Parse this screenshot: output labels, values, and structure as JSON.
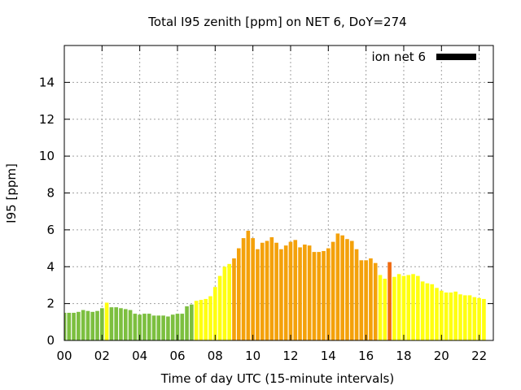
{
  "chart_data": {
    "type": "bar",
    "title": "Total I95 zenith [ppm] on NET 6, DoY=274",
    "xlabel": "Time of day UTC (15-minute intervals)",
    "ylabel": "I95 [ppm]",
    "xlim": [
      0,
      22.75
    ],
    "ylim": [
      0,
      16
    ],
    "grid": true,
    "legend": {
      "label": "ion net 6",
      "position": "top-right",
      "color": "#000000"
    },
    "xticks": [
      "00",
      "02",
      "04",
      "06",
      "08",
      "10",
      "12",
      "14",
      "16",
      "18",
      "20",
      "22"
    ],
    "yticks": [
      "0",
      "2",
      "4",
      "6",
      "8",
      "10",
      "12",
      "14"
    ],
    "colors": {
      "green": "#7cbf3f",
      "yellow": "#ffff10",
      "orange": "#f4a10a",
      "red": "#f06a10"
    },
    "interval_hours": 0.25,
    "values": [
      1.5,
      1.5,
      1.5,
      1.55,
      1.65,
      1.6,
      1.55,
      1.6,
      1.75,
      2.05,
      1.8,
      1.8,
      1.75,
      1.7,
      1.65,
      1.45,
      1.4,
      1.45,
      1.45,
      1.35,
      1.35,
      1.35,
      1.3,
      1.4,
      1.45,
      1.45,
      1.85,
      1.95,
      2.15,
      2.2,
      2.25,
      2.4,
      2.9,
      3.5,
      4.0,
      4.15,
      4.45,
      5.0,
      5.55,
      5.95,
      5.55,
      4.95,
      5.3,
      5.4,
      5.6,
      5.3,
      4.95,
      5.15,
      5.35,
      5.45,
      5.05,
      5.2,
      5.15,
      4.8,
      4.8,
      4.85,
      5.0,
      5.35,
      5.8,
      5.7,
      5.5,
      5.4,
      4.95,
      4.35,
      4.35,
      4.45,
      4.2,
      3.55,
      3.35,
      4.25,
      3.45,
      3.6,
      3.5,
      3.55,
      3.6,
      3.5,
      3.2,
      3.1,
      3.05,
      2.85,
      2.7,
      2.6,
      2.6,
      2.65,
      2.5,
      2.45,
      2.45,
      2.35,
      2.3,
      2.25
    ],
    "value_colors": [
      "green",
      "green",
      "green",
      "green",
      "green",
      "green",
      "green",
      "green",
      "green",
      "yellow",
      "green",
      "green",
      "green",
      "green",
      "green",
      "green",
      "green",
      "green",
      "green",
      "green",
      "green",
      "green",
      "green",
      "green",
      "green",
      "green",
      "green",
      "green",
      "yellow",
      "yellow",
      "yellow",
      "yellow",
      "yellow",
      "yellow",
      "yellow",
      "yellow",
      "orange",
      "orange",
      "orange",
      "orange",
      "orange",
      "orange",
      "orange",
      "orange",
      "orange",
      "orange",
      "orange",
      "orange",
      "orange",
      "orange",
      "orange",
      "orange",
      "orange",
      "orange",
      "orange",
      "orange",
      "orange",
      "orange",
      "orange",
      "orange",
      "orange",
      "orange",
      "orange",
      "orange",
      "orange",
      "orange",
      "orange",
      "yellow",
      "yellow",
      "red",
      "yellow",
      "yellow",
      "yellow",
      "yellow",
      "yellow",
      "yellow",
      "yellow",
      "yellow",
      "yellow",
      "yellow",
      "yellow",
      "yellow",
      "yellow",
      "yellow",
      "yellow",
      "yellow",
      "yellow",
      "yellow",
      "yellow",
      "yellow"
    ]
  }
}
